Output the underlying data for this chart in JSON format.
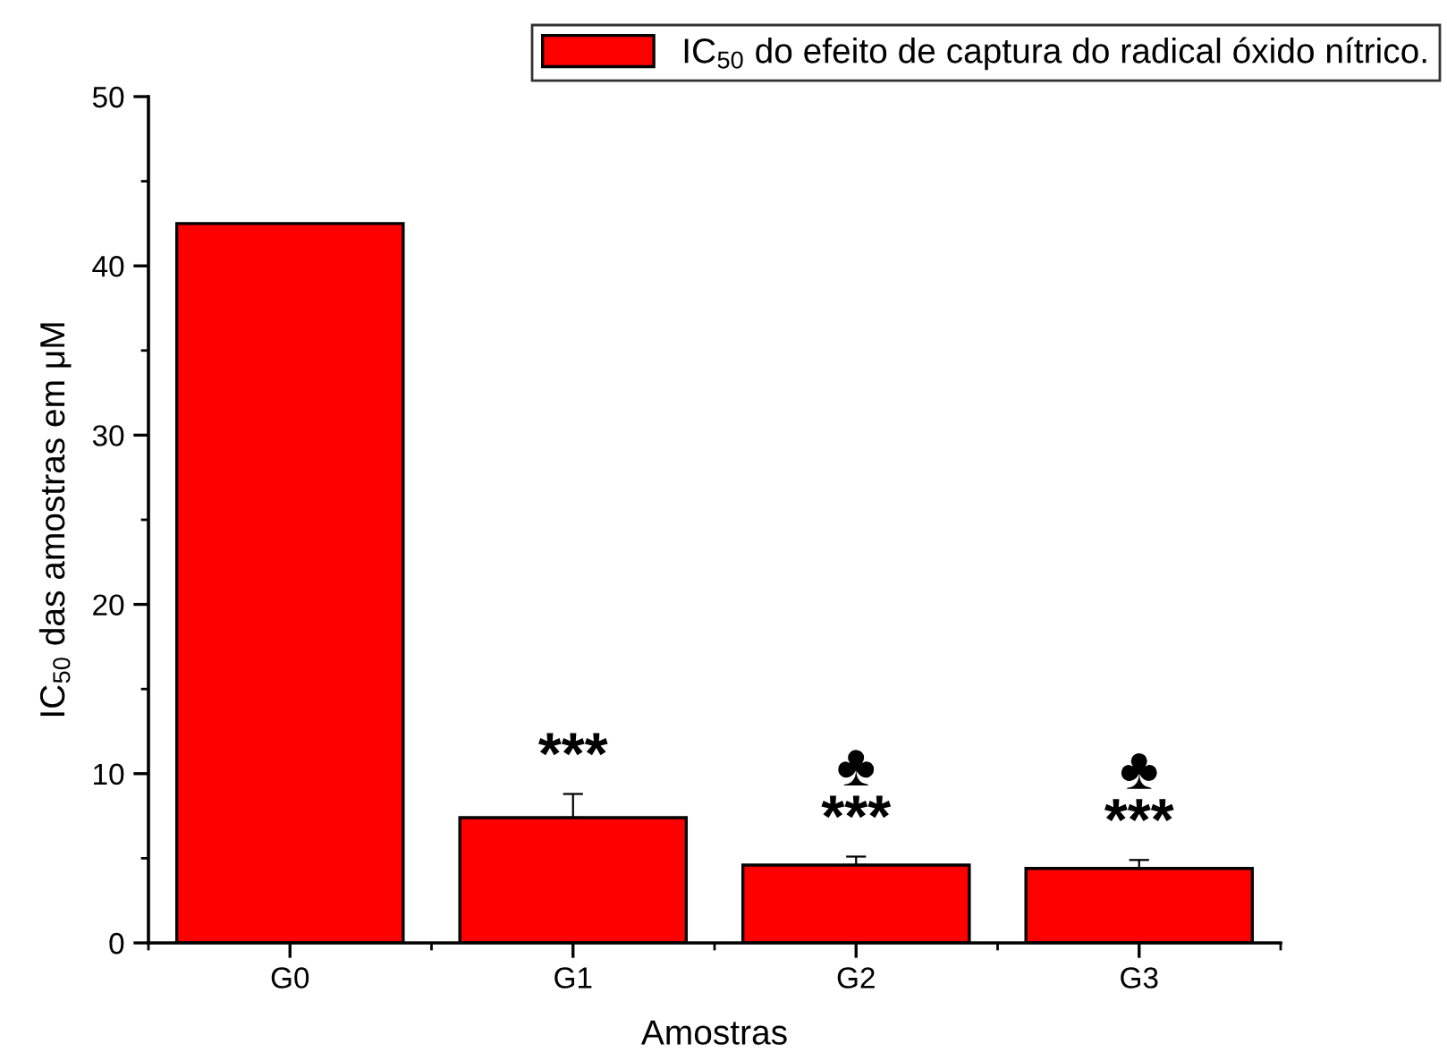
{
  "chart_data": {
    "type": "bar",
    "xlabel": "Amostras",
    "ylabel": "IC$_{50}$ das amostras em μM",
    "categories": [
      "G0",
      "G1",
      "G2",
      "G3"
    ],
    "series": [
      {
        "name": "IC$_{50}$ do efeito de captura do radical óxido nítrico.",
        "color": "#ff0000",
        "values": [
          42.5,
          7.4,
          4.6,
          4.4
        ],
        "errors": [
          null,
          [
            7.4,
            8.8
          ],
          [
            4.6,
            5.1
          ],
          [
            4.4,
            4.9
          ]
        ],
        "value_labels": [
          null,
          "***",
          "♣\n***",
          "♣\n***"
        ]
      }
    ],
    "ylim": [
      0,
      50
    ],
    "yticks": [
      0,
      10,
      20,
      30,
      40,
      50
    ],
    "grid": false,
    "legend": "top right"
  }
}
